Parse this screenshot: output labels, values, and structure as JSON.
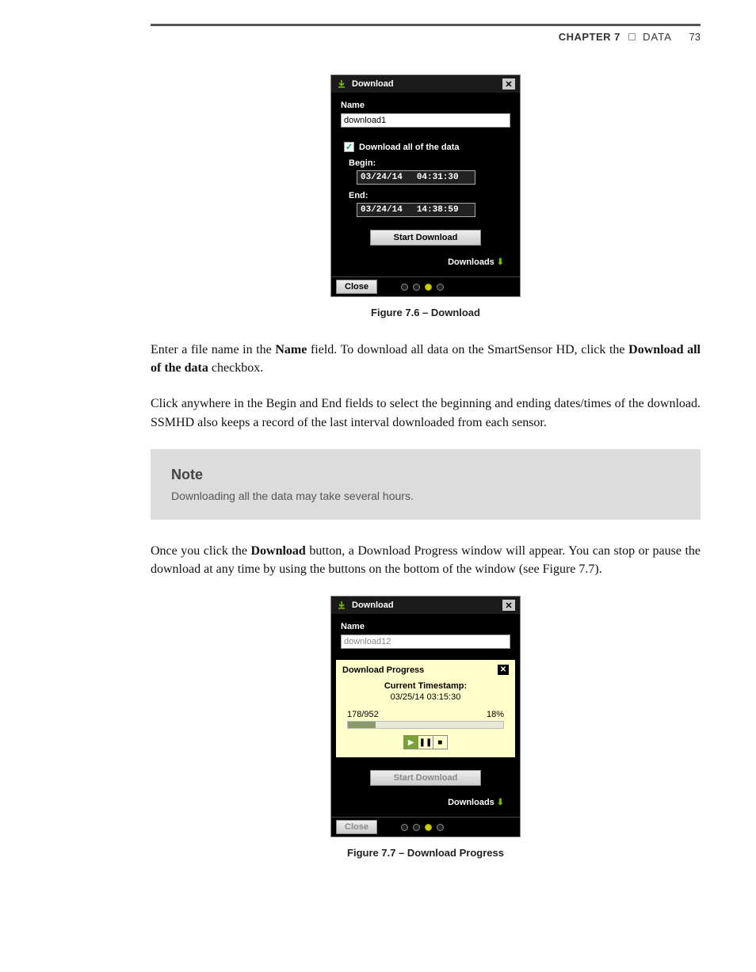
{
  "header": {
    "chapter": "CHAPTER 7",
    "section": "DATA",
    "page": "73"
  },
  "fig1": {
    "title": "Download",
    "name_label": "Name",
    "name_value": "download1",
    "chk_label": "Download all of the data",
    "begin_label": "Begin:",
    "begin_date": "03/24/14",
    "begin_time": "04:31:30",
    "end_label": "End:",
    "end_date": "03/24/14",
    "end_time": "14:38:59",
    "start_btn": "Start Download",
    "downloads": "Downloads",
    "close": "Close",
    "caption": "Figure 7.6 – Download"
  },
  "para1_a": "Enter a file name in the ",
  "para1_b": "Name",
  "para1_c": " field. To download all data on the SmartSensor HD, click the ",
  "para1_d": "Download all of the data",
  "para1_e": " checkbox.",
  "para2": "Click anywhere in the Begin and End fields to select the beginning and ending dates/times of the download. SSMHD also keeps a record of the last interval downloaded from each sensor.",
  "note": {
    "title": "Note",
    "body": "Downloading all the data may take several hours."
  },
  "para3_a": "Once you click the ",
  "para3_b": "Download",
  "para3_c": " button, a Download Progress window will appear. You can stop or pause the download at any time by using the buttons on the bottom of the window (see Figure 7.7).",
  "fig2": {
    "title": "Download",
    "name_label": "Name",
    "name_value": "download12",
    "pp_title": "Download Progress",
    "ts_label": "Current Timestamp:",
    "ts_value": "03/25/14 03:15:30",
    "count": "178/952",
    "pct": "18%",
    "pct_val": 18,
    "start_btn": "Start Download",
    "downloads": "Downloads",
    "close": "Close",
    "caption": "Figure 7.7 – Download Progress"
  },
  "colors": {
    "accent_green": "#7ab800",
    "note_bg": "#dcdcdc",
    "progress_bg": "#ffffcc"
  }
}
